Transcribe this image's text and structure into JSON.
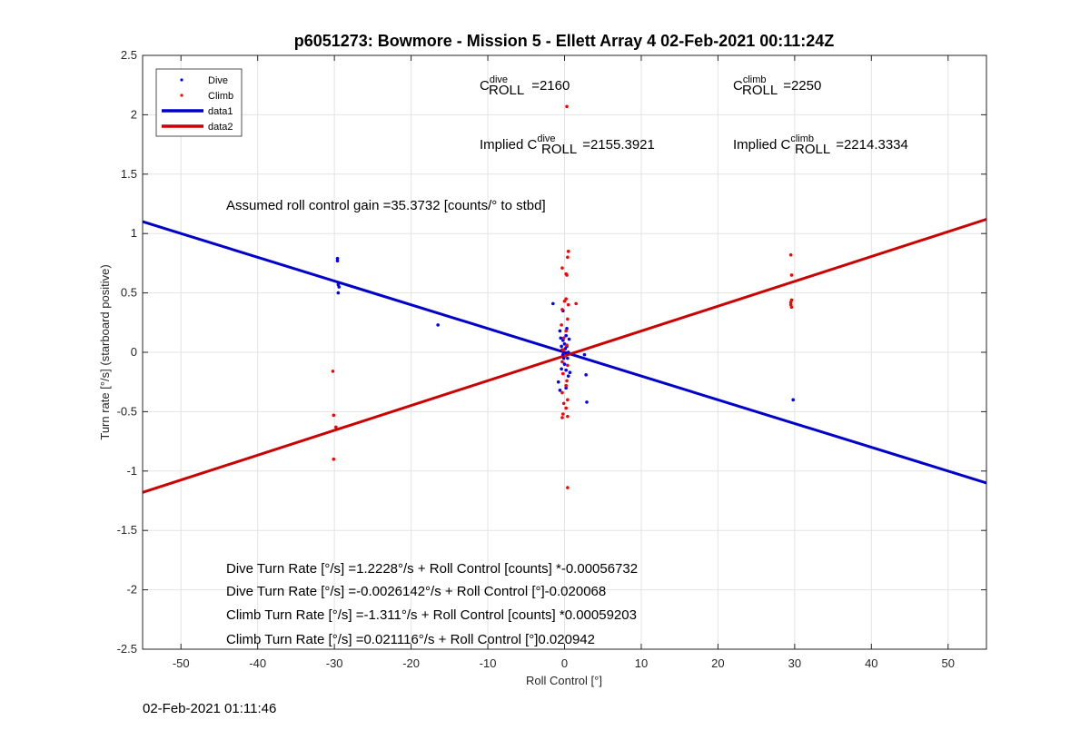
{
  "chart_data": {
    "type": "scatter",
    "title": "p6051273: Bowmore - Mission 5 - Ellett Array 4 02-Feb-2021 00:11:24Z",
    "xlabel": "Roll Control [°]",
    "ylabel": "Turn rate [°/s] (starboard positive)",
    "xlim": [
      -55,
      55
    ],
    "ylim": [
      -2.5,
      2.5
    ],
    "xticks": [
      -50,
      -40,
      -30,
      -20,
      -10,
      0,
      10,
      20,
      30,
      40,
      50
    ],
    "yticks": [
      -2.5,
      -2,
      -1.5,
      -1,
      -0.5,
      0,
      0.5,
      1,
      1.5,
      2,
      2.5
    ],
    "grid": true,
    "legend_placement": "top-left",
    "colors": {
      "dive": "#0000ff",
      "climb": "#ff0000",
      "data1": "#0000cc",
      "data2": "#cc0000"
    },
    "series": [
      {
        "name": "Dive",
        "kind": "points",
        "color": "#0000ff",
        "points": [
          [
            -29.6,
            0.79
          ],
          [
            -29.6,
            0.77
          ],
          [
            -29.5,
            0.57
          ],
          [
            -29.4,
            0.55
          ],
          [
            -29.5,
            0.5
          ],
          [
            -16.5,
            0.23
          ],
          [
            -1.5,
            0.41
          ],
          [
            -0.6,
            0.18
          ],
          [
            -0.5,
            0.12
          ],
          [
            -0.4,
            0.05
          ],
          [
            -0.3,
            0.02
          ],
          [
            -0.2,
            -0.02
          ],
          [
            -0.2,
            0.1
          ],
          [
            -0.1,
            0.0
          ],
          [
            -0.1,
            -0.05
          ],
          [
            0,
            0.07
          ],
          [
            0,
            -0.1
          ],
          [
            0.1,
            0.03
          ],
          [
            0.1,
            -0.02
          ],
          [
            0.2,
            0.14
          ],
          [
            0.2,
            -0.15
          ],
          [
            0.3,
            0.2
          ],
          [
            0.3,
            0.05
          ],
          [
            0.4,
            -0.05
          ],
          [
            0.5,
            0.0
          ],
          [
            0.5,
            -0.2
          ],
          [
            0.6,
            0.11
          ],
          [
            0.7,
            -0.17
          ],
          [
            -0.8,
            -0.25
          ],
          [
            -0.6,
            -0.32
          ],
          [
            -0.4,
            -0.14
          ],
          [
            0.2,
            -0.3
          ],
          [
            0.5,
            0.0
          ],
          [
            -0.2,
            0.35
          ],
          [
            2.6,
            -0.02
          ],
          [
            2.8,
            -0.19
          ],
          [
            2.9,
            -0.42
          ],
          [
            29.8,
            -0.4
          ]
        ]
      },
      {
        "name": "Climb",
        "kind": "points",
        "color": "#ff0000",
        "points": [
          [
            -30.2,
            -0.16
          ],
          [
            -30.1,
            -0.53
          ],
          [
            -29.8,
            -0.63
          ],
          [
            -30.1,
            -0.9
          ],
          [
            0.3,
            2.07
          ],
          [
            0.5,
            0.85
          ],
          [
            0.4,
            0.8
          ],
          [
            -0.3,
            0.71
          ],
          [
            0.2,
            0.66
          ],
          [
            0.3,
            0.65
          ],
          [
            1.5,
            0.41
          ],
          [
            0.2,
            0.45
          ],
          [
            0,
            0.43
          ],
          [
            0.5,
            0.4
          ],
          [
            -0.3,
            0.36
          ],
          [
            0.4,
            0.28
          ],
          [
            -0.4,
            0.23
          ],
          [
            0.2,
            0.18
          ],
          [
            -0.1,
            0.12
          ],
          [
            0.3,
            0.06
          ],
          [
            -0.2,
            0.02
          ],
          [
            0.1,
            -0.03
          ],
          [
            -0.3,
            -0.08
          ],
          [
            0.4,
            -0.11
          ],
          [
            -0.2,
            -0.18
          ],
          [
            0.3,
            -0.24
          ],
          [
            0.2,
            -0.28
          ],
          [
            -0.3,
            -0.34
          ],
          [
            0.4,
            -0.4
          ],
          [
            -0.1,
            -0.43
          ],
          [
            0.2,
            -0.47
          ],
          [
            -0.2,
            -0.52
          ],
          [
            -0.3,
            -0.55
          ],
          [
            0.4,
            -0.54
          ],
          [
            0.4,
            -1.14
          ],
          [
            29.5,
            0.82
          ],
          [
            29.6,
            0.65
          ],
          [
            29.6,
            0.44
          ],
          [
            29.5,
            0.42
          ],
          [
            29.5,
            0.4
          ],
          [
            29.6,
            0.38
          ]
        ]
      },
      {
        "name": "data1",
        "kind": "line",
        "color": "#0000cc",
        "x": [
          -55,
          55
        ],
        "y": [
          1.1,
          -1.1
        ]
      },
      {
        "name": "data2",
        "kind": "line",
        "color": "#cc0000",
        "x": [
          -55,
          55
        ],
        "y": [
          -1.18,
          1.12
        ]
      }
    ],
    "annotations": {
      "c_dive": {
        "prefix": "C",
        "sup": "dive",
        "sub": "ROLL",
        "value": "=2160"
      },
      "c_climb": {
        "prefix": "C",
        "sup": "climb",
        "sub": "ROLL",
        "value": "=2250"
      },
      "implied_dive": {
        "prefix": "Implied C",
        "sup": "dive",
        "sub": "ROLL",
        "value": "=2155.3921"
      },
      "implied_climb": {
        "prefix": "Implied C",
        "sup": "climb",
        "sub": "ROLL",
        "value": "=2214.3334"
      },
      "gain": "Assumed roll control gain =35.3732 [counts/° to stbd]",
      "fits": [
        "Dive Turn Rate [°/s] =1.2228°/s + Roll Control [counts] *-0.00056732",
        "Dive Turn Rate [°/s] =-0.0026142°/s + Roll Control [°]-0.020068",
        "Climb Turn Rate [°/s] =-1.311°/s + Roll Control [counts] *0.00059203",
        "Climb Turn Rate [°/s] =0.021116°/s + Roll Control [°]0.020942"
      ]
    }
  },
  "footer_timestamp": "02-Feb-2021 01:11:46"
}
